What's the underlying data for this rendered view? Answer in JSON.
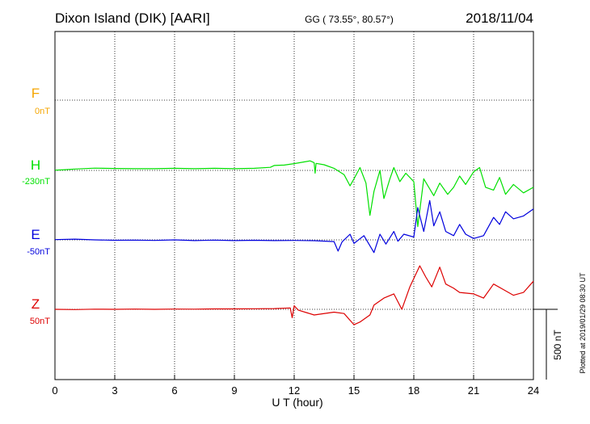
{
  "header": {
    "title": "Dixon Island (DIK)  [AARI]",
    "coords": "GG ( 73.55°,  80.57°)",
    "date": "2018/11/04"
  },
  "side_note": "Plotted at 2019/01/29 08:30 UT",
  "chart_data": {
    "type": "line",
    "title": "Dixon Island (DIK)  [AARI]",
    "xlabel": "U T (hour)",
    "xlim": [
      0,
      24
    ],
    "xticks": [
      0,
      3,
      6,
      9,
      12,
      15,
      18,
      21,
      24
    ],
    "grid": true,
    "scale_bar": {
      "label": "500 nT",
      "value_nT": 500
    },
    "series": [
      {
        "name": "F",
        "baseline_label": "0nT",
        "color": "#f5a500",
        "points": []
      },
      {
        "name": "H",
        "baseline_label": "-230nT",
        "color": "#00e000",
        "points": [
          [
            0,
            2
          ],
          [
            0.5,
            5
          ],
          [
            1,
            10
          ],
          [
            2,
            16
          ],
          [
            3,
            14
          ],
          [
            4,
            12
          ],
          [
            5,
            12
          ],
          [
            6,
            15
          ],
          [
            7,
            12
          ],
          [
            8,
            15
          ],
          [
            9,
            12
          ],
          [
            10,
            15
          ],
          [
            10.8,
            22
          ],
          [
            11,
            35
          ],
          [
            11.5,
            38
          ],
          [
            12,
            48
          ],
          [
            12.8,
            68
          ],
          [
            13,
            55
          ],
          [
            13.05,
            -20
          ],
          [
            13.1,
            50
          ],
          [
            13.5,
            40
          ],
          [
            14,
            15
          ],
          [
            14.5,
            -30
          ],
          [
            14.8,
            -110
          ],
          [
            15,
            -60
          ],
          [
            15.3,
            20
          ],
          [
            15.6,
            -90
          ],
          [
            15.8,
            -320
          ],
          [
            16,
            -150
          ],
          [
            16.3,
            0
          ],
          [
            16.5,
            -200
          ],
          [
            16.8,
            -60
          ],
          [
            17.0,
            20
          ],
          [
            17.3,
            -80
          ],
          [
            17.6,
            -20
          ],
          [
            18,
            -80
          ],
          [
            18.2,
            -400
          ],
          [
            18.5,
            -60
          ],
          [
            19,
            -180
          ],
          [
            19.3,
            -90
          ],
          [
            19.7,
            -170
          ],
          [
            20,
            -120
          ],
          [
            20.3,
            -40
          ],
          [
            20.6,
            -100
          ],
          [
            21,
            -10
          ],
          [
            21.3,
            20
          ],
          [
            21.6,
            -120
          ],
          [
            22,
            -140
          ],
          [
            22.3,
            -50
          ],
          [
            22.6,
            -170
          ],
          [
            23,
            -100
          ],
          [
            23.5,
            -160
          ],
          [
            24,
            -120
          ]
        ]
      },
      {
        "name": "E",
        "baseline_label": "-50nT",
        "color": "#0000dd",
        "points": [
          [
            0,
            2
          ],
          [
            1,
            5
          ],
          [
            2,
            0
          ],
          [
            3,
            -3
          ],
          [
            4,
            -2
          ],
          [
            5,
            -4
          ],
          [
            6,
            0
          ],
          [
            7,
            -5
          ],
          [
            8,
            -2
          ],
          [
            9,
            -5
          ],
          [
            10,
            -3
          ],
          [
            11,
            -5
          ],
          [
            12,
            -4
          ],
          [
            13,
            -6
          ],
          [
            14,
            -12
          ],
          [
            14.2,
            -80
          ],
          [
            14.4,
            -15
          ],
          [
            14.8,
            40
          ],
          [
            15,
            -25
          ],
          [
            15.5,
            30
          ],
          [
            16,
            -90
          ],
          [
            16.3,
            40
          ],
          [
            16.6,
            -30
          ],
          [
            17,
            60
          ],
          [
            17.2,
            -10
          ],
          [
            17.5,
            40
          ],
          [
            18,
            20
          ],
          [
            18.2,
            230
          ],
          [
            18.5,
            60
          ],
          [
            18.8,
            280
          ],
          [
            19,
            100
          ],
          [
            19.3,
            200
          ],
          [
            19.6,
            60
          ],
          [
            20,
            30
          ],
          [
            20.3,
            110
          ],
          [
            20.6,
            40
          ],
          [
            21,
            10
          ],
          [
            21.5,
            30
          ],
          [
            22,
            160
          ],
          [
            22.3,
            110
          ],
          [
            22.6,
            200
          ],
          [
            23,
            150
          ],
          [
            23.5,
            170
          ],
          [
            24,
            220
          ]
        ]
      },
      {
        "name": "Z",
        "baseline_label": "50nT",
        "color": "#dd0000",
        "points": [
          [
            0,
            0
          ],
          [
            1,
            -2
          ],
          [
            2,
            1
          ],
          [
            3,
            0
          ],
          [
            4,
            2
          ],
          [
            5,
            0
          ],
          [
            6,
            2
          ],
          [
            7,
            1
          ],
          [
            8,
            3
          ],
          [
            9,
            3
          ],
          [
            10,
            4
          ],
          [
            11,
            5
          ],
          [
            11.8,
            10
          ],
          [
            11.9,
            -60
          ],
          [
            12,
            25
          ],
          [
            12.2,
            -5
          ],
          [
            13,
            -40
          ],
          [
            14,
            -20
          ],
          [
            14.5,
            -30
          ],
          [
            15,
            -110
          ],
          [
            15.3,
            -90
          ],
          [
            15.8,
            -40
          ],
          [
            16,
            30
          ],
          [
            16.5,
            80
          ],
          [
            17,
            110
          ],
          [
            17.4,
            0
          ],
          [
            17.8,
            160
          ],
          [
            18,
            220
          ],
          [
            18.3,
            310
          ],
          [
            18.6,
            230
          ],
          [
            18.9,
            160
          ],
          [
            19.3,
            300
          ],
          [
            19.6,
            180
          ],
          [
            20,
            150
          ],
          [
            20.3,
            120
          ],
          [
            21,
            110
          ],
          [
            21.5,
            80
          ],
          [
            22,
            180
          ],
          [
            22.5,
            140
          ],
          [
            23,
            100
          ],
          [
            23.5,
            120
          ],
          [
            24,
            200
          ]
        ]
      }
    ]
  }
}
